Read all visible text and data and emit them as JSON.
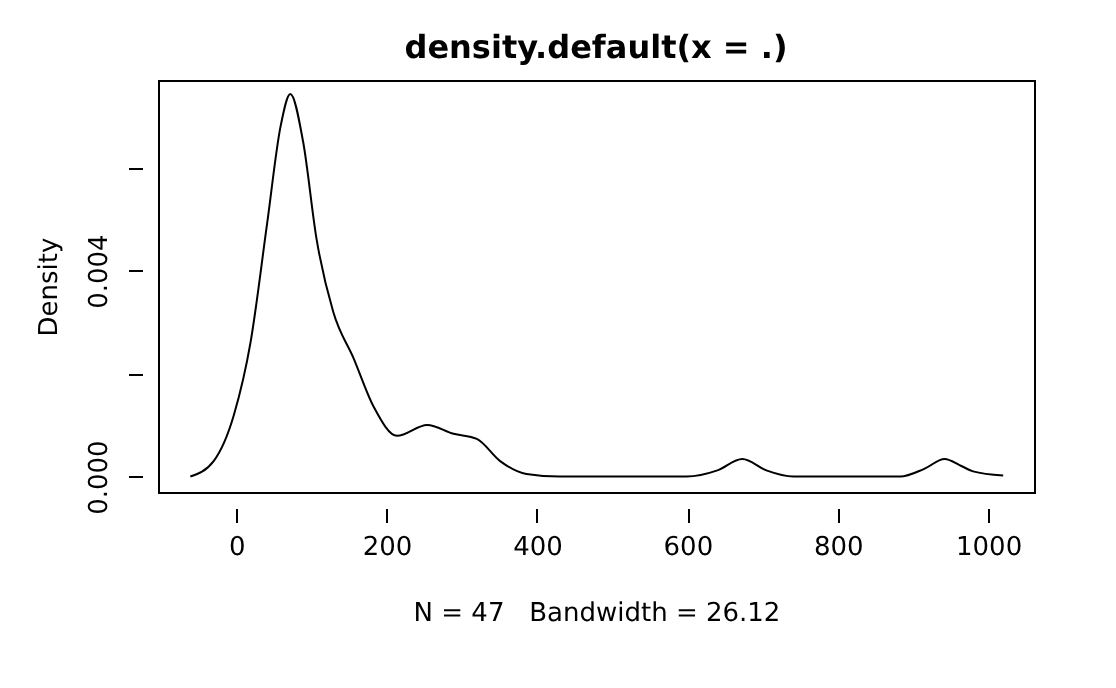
{
  "chart_data": {
    "type": "line",
    "title": "density.default(x = .)",
    "xlabel": "N = 47   Bandwidth = 26.12",
    "ylabel": "Density",
    "x": [
      -61,
      -30,
      -3,
      19,
      41,
      59,
      72,
      89,
      107,
      129,
      156,
      183,
      214,
      254,
      289,
      320,
      351,
      386,
      430,
      500,
      599,
      640,
      673,
      705,
      741,
      800,
      883,
      915,
      942,
      965,
      980,
      1020
    ],
    "series": [
      {
        "color": "#000000",
        "values": [
          0,
          0.0003,
          0.0012,
          0.0026,
          0.0049,
          0.0068,
          0.00743,
          0.0065,
          0.0046,
          0.0032,
          0.0023,
          0.00135,
          0.00079,
          0.001,
          0.00083,
          0.00073,
          0.0003,
          5e-05,
          0,
          0,
          0,
          0.00012,
          0.00034,
          0.00012,
          0,
          0,
          0,
          0.00015,
          0.00034,
          0.0002,
          0.0001,
          2e-05
        ]
      }
    ],
    "xlim": [
      -104,
      1061
    ],
    "xticks": [
      0,
      200,
      400,
      600,
      800,
      1000
    ],
    "ylim": [
      -0.0003,
      0.0077
    ],
    "yticks": [
      {
        "value": 0,
        "label": "0.000"
      },
      {
        "value": 0.002,
        "label": null
      },
      {
        "value": 0.004,
        "label": "0.004"
      },
      {
        "value": 0.006,
        "label": null
      }
    ],
    "grid": false,
    "line_style": "solid",
    "marker": "none"
  }
}
